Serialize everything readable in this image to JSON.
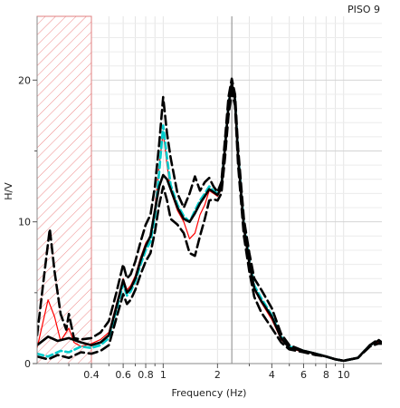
{
  "chart_data": {
    "type": "line",
    "title": "PISO 9",
    "xlabel": "Frequency (Hz)",
    "ylabel": "H/V",
    "x_scale": "log",
    "xlim": [
      0.2,
      16.3
    ],
    "ylim": [
      0,
      24.5
    ],
    "x_ticks": [
      {
        "value": 0.4,
        "label": "0.4"
      },
      {
        "value": 0.6,
        "label": "0.6"
      },
      {
        "value": 0.8,
        "label": "0.8"
      },
      {
        "value": 1,
        "label": "1"
      },
      {
        "value": 2,
        "label": "2"
      },
      {
        "value": 4,
        "label": "4"
      },
      {
        "value": 6,
        "label": "6"
      },
      {
        "value": 8,
        "label": "8"
      },
      {
        "value": 10,
        "label": "10"
      }
    ],
    "y_ticks": [
      {
        "value": 0,
        "label": "0"
      },
      {
        "value": 10,
        "label": "10"
      },
      {
        "value": 20,
        "label": "20"
      }
    ],
    "grid": true,
    "excluded_band": {
      "x_min": 0.2,
      "x_max": 0.4,
      "style": "red-hatched"
    },
    "peak_marker_x": 2.4,
    "series": [
      {
        "color": "#ff0000",
        "style": "solid",
        "points": [
          [
            0.2,
            1.1
          ],
          [
            0.23,
            4.5
          ],
          [
            0.25,
            3.3
          ],
          [
            0.27,
            1.6
          ],
          [
            0.3,
            2.5
          ],
          [
            0.32,
            1.5
          ],
          [
            0.35,
            1.2
          ],
          [
            0.4,
            1.4
          ],
          [
            0.45,
            1.7
          ],
          [
            0.5,
            2.2
          ],
          [
            0.55,
            4.2
          ],
          [
            0.6,
            6
          ],
          [
            0.63,
            5.2
          ],
          [
            0.66,
            5.5
          ],
          [
            0.7,
            6.2
          ],
          [
            0.75,
            7.5
          ],
          [
            0.8,
            8.5
          ],
          [
            0.85,
            9
          ],
          [
            0.9,
            11
          ],
          [
            0.95,
            14
          ],
          [
            1,
            16.3
          ],
          [
            1.05,
            14
          ],
          [
            1.1,
            12.2
          ],
          [
            1.2,
            10.8
          ],
          [
            1.3,
            10
          ],
          [
            1.4,
            8.8
          ],
          [
            1.5,
            9.2
          ],
          [
            1.6,
            10.5
          ],
          [
            1.7,
            11.2
          ],
          [
            1.8,
            12.2
          ],
          [
            1.9,
            12
          ],
          [
            2,
            11.8
          ],
          [
            2.1,
            12.3
          ],
          [
            2.2,
            15
          ],
          [
            2.3,
            18
          ],
          [
            2.4,
            19.5
          ],
          [
            2.5,
            18.5
          ],
          [
            2.6,
            14.5
          ],
          [
            2.8,
            9.5
          ],
          [
            3,
            7
          ],
          [
            3.2,
            5.2
          ],
          [
            3.5,
            4.3
          ],
          [
            4,
            3.1
          ],
          [
            4.5,
            1.7
          ],
          [
            5,
            1.1
          ],
          [
            6,
            0.8
          ],
          [
            7,
            0.7
          ],
          [
            8,
            0.5
          ],
          [
            9,
            0.3
          ],
          [
            10,
            0.2
          ],
          [
            12,
            0.4
          ],
          [
            14,
            1.3
          ],
          [
            15.5,
            1.5
          ],
          [
            16.3,
            1.5
          ]
        ]
      },
      {
        "color": "#00cccc",
        "style": "dashed",
        "points": [
          [
            0.2,
            0.7
          ],
          [
            0.23,
            0.5
          ],
          [
            0.27,
            0.9
          ],
          [
            0.3,
            0.8
          ],
          [
            0.35,
            1.2
          ],
          [
            0.4,
            1.1
          ],
          [
            0.45,
            1.3
          ],
          [
            0.5,
            1.8
          ],
          [
            0.55,
            3.8
          ],
          [
            0.6,
            5.6
          ],
          [
            0.63,
            4.8
          ],
          [
            0.66,
            5.1
          ],
          [
            0.7,
            5.8
          ],
          [
            0.75,
            7
          ],
          [
            0.8,
            8
          ],
          [
            0.85,
            8.6
          ],
          [
            0.9,
            10.4
          ],
          [
            0.95,
            13.5
          ],
          [
            1,
            16.8
          ],
          [
            1.05,
            14.5
          ],
          [
            1.1,
            12.6
          ],
          [
            1.2,
            11.2
          ],
          [
            1.3,
            10.4
          ],
          [
            1.4,
            10
          ],
          [
            1.5,
            10.8
          ],
          [
            1.6,
            11.5
          ],
          [
            1.7,
            12
          ],
          [
            1.8,
            12.5
          ],
          [
            1.9,
            12.2
          ],
          [
            2,
            12
          ],
          [
            2.1,
            12.5
          ],
          [
            2.2,
            15.3
          ],
          [
            2.3,
            18.3
          ],
          [
            2.4,
            19.7
          ],
          [
            2.5,
            18.7
          ],
          [
            2.6,
            14.8
          ],
          [
            2.8,
            9.8
          ],
          [
            3,
            7.3
          ],
          [
            3.2,
            5.5
          ],
          [
            3.5,
            4.6
          ],
          [
            4,
            3.4
          ],
          [
            4.5,
            1.9
          ],
          [
            5,
            1.2
          ],
          [
            6,
            0.9
          ],
          [
            7,
            0.7
          ],
          [
            8,
            0.5
          ],
          [
            9,
            0.3
          ],
          [
            10,
            0.2
          ],
          [
            12,
            0.4
          ],
          [
            14,
            1.3
          ],
          [
            15.5,
            1.6
          ],
          [
            16.3,
            1.5
          ]
        ]
      },
      {
        "color": "#000000",
        "style": "dashed",
        "points": [
          [
            0.2,
            2
          ],
          [
            0.22,
            6.5
          ],
          [
            0.235,
            9.5
          ],
          [
            0.25,
            6.5
          ],
          [
            0.27,
            3.5
          ],
          [
            0.29,
            2.4
          ],
          [
            0.3,
            3.5
          ],
          [
            0.32,
            1.8
          ],
          [
            0.35,
            1.7
          ],
          [
            0.4,
            1.8
          ],
          [
            0.45,
            2.2
          ],
          [
            0.5,
            3
          ],
          [
            0.55,
            5
          ],
          [
            0.6,
            7
          ],
          [
            0.63,
            6
          ],
          [
            0.66,
            6.3
          ],
          [
            0.7,
            7.2
          ],
          [
            0.75,
            8.6
          ],
          [
            0.8,
            9.8
          ],
          [
            0.85,
            10.5
          ],
          [
            0.9,
            12.5
          ],
          [
            0.95,
            15.5
          ],
          [
            1,
            18.8
          ],
          [
            1.05,
            16.2
          ],
          [
            1.1,
            14.5
          ],
          [
            1.2,
            12
          ],
          [
            1.3,
            11
          ],
          [
            1.4,
            12
          ],
          [
            1.5,
            13.2
          ],
          [
            1.6,
            12.2
          ],
          [
            1.7,
            12.8
          ],
          [
            1.8,
            13.1
          ],
          [
            1.9,
            12.5
          ],
          [
            2,
            12.1
          ],
          [
            2.1,
            12.8
          ],
          [
            2.2,
            15.8
          ],
          [
            2.3,
            18.8
          ],
          [
            2.4,
            20.1
          ],
          [
            2.5,
            19
          ],
          [
            2.6,
            15.2
          ],
          [
            2.8,
            10.2
          ],
          [
            3,
            7.8
          ],
          [
            3.2,
            6
          ],
          [
            3.5,
            5.2
          ],
          [
            4,
            3.9
          ],
          [
            4.5,
            2.1
          ],
          [
            5,
            1.3
          ],
          [
            6,
            0.9
          ],
          [
            7,
            0.7
          ],
          [
            8,
            0.5
          ],
          [
            9,
            0.3
          ],
          [
            10,
            0.2
          ],
          [
            12,
            0.4
          ],
          [
            14,
            1.3
          ],
          [
            15.5,
            1.7
          ],
          [
            16.3,
            1.5
          ]
        ]
      },
      {
        "color": "#000000",
        "style": "dashed",
        "points": [
          [
            0.2,
            0.5
          ],
          [
            0.23,
            0.3
          ],
          [
            0.26,
            0.6
          ],
          [
            0.3,
            0.4
          ],
          [
            0.35,
            0.8
          ],
          [
            0.4,
            0.7
          ],
          [
            0.45,
            0.9
          ],
          [
            0.5,
            1.3
          ],
          [
            0.55,
            3.2
          ],
          [
            0.6,
            4.9
          ],
          [
            0.63,
            4.2
          ],
          [
            0.66,
            4.5
          ],
          [
            0.7,
            5.2
          ],
          [
            0.75,
            6.3
          ],
          [
            0.8,
            7.2
          ],
          [
            0.85,
            7.8
          ],
          [
            0.9,
            9.3
          ],
          [
            0.95,
            11.2
          ],
          [
            1,
            12.5
          ],
          [
            1.05,
            11.5
          ],
          [
            1.1,
            10.2
          ],
          [
            1.2,
            9.8
          ],
          [
            1.3,
            9.2
          ],
          [
            1.4,
            7.8
          ],
          [
            1.5,
            7.6
          ],
          [
            1.6,
            9
          ],
          [
            1.7,
            10.2
          ],
          [
            1.8,
            11.5
          ],
          [
            1.9,
            11.6
          ],
          [
            2,
            11.5
          ],
          [
            2.1,
            12
          ],
          [
            2.2,
            14.5
          ],
          [
            2.3,
            17.5
          ],
          [
            2.4,
            19.2
          ],
          [
            2.5,
            18.2
          ],
          [
            2.6,
            14
          ],
          [
            2.8,
            9
          ],
          [
            3,
            6.5
          ],
          [
            3.2,
            4.7
          ],
          [
            3.5,
            3.6
          ],
          [
            4,
            2.5
          ],
          [
            4.5,
            1.5
          ],
          [
            5,
            1
          ],
          [
            6,
            0.8
          ],
          [
            7,
            0.6
          ],
          [
            8,
            0.5
          ],
          [
            9,
            0.3
          ],
          [
            10,
            0.2
          ],
          [
            12,
            0.4
          ],
          [
            14,
            1.2
          ],
          [
            15.5,
            1.4
          ],
          [
            16.3,
            1.4
          ]
        ]
      },
      {
        "color": "#000000",
        "style": "solid",
        "points": [
          [
            0.2,
            1.3
          ],
          [
            0.23,
            1.9
          ],
          [
            0.26,
            1.6
          ],
          [
            0.3,
            1.8
          ],
          [
            0.35,
            1.5
          ],
          [
            0.4,
            1.3
          ],
          [
            0.45,
            1.5
          ],
          [
            0.5,
            2
          ],
          [
            0.55,
            4
          ],
          [
            0.6,
            5.9
          ],
          [
            0.63,
            5
          ],
          [
            0.66,
            5.3
          ],
          [
            0.7,
            6
          ],
          [
            0.75,
            7.3
          ],
          [
            0.8,
            8.3
          ],
          [
            0.85,
            9
          ],
          [
            0.9,
            10.8
          ],
          [
            0.95,
            12.5
          ],
          [
            1,
            13.3
          ],
          [
            1.05,
            13
          ],
          [
            1.1,
            12.3
          ],
          [
            1.2,
            11
          ],
          [
            1.3,
            10.2
          ],
          [
            1.4,
            10
          ],
          [
            1.5,
            10.6
          ],
          [
            1.6,
            11.3
          ],
          [
            1.7,
            11.8
          ],
          [
            1.8,
            12.3
          ],
          [
            1.9,
            12.1
          ],
          [
            2,
            11.9
          ],
          [
            2.1,
            12.4
          ],
          [
            2.2,
            15.2
          ],
          [
            2.3,
            18.2
          ],
          [
            2.4,
            19.8
          ],
          [
            2.5,
            18.6
          ],
          [
            2.6,
            14.6
          ],
          [
            2.8,
            9.6
          ],
          [
            3,
            7.1
          ],
          [
            3.2,
            5.3
          ],
          [
            3.5,
            4.4
          ],
          [
            4,
            3.3
          ],
          [
            4.5,
            1.8
          ],
          [
            5,
            1.1
          ],
          [
            6,
            0.9
          ],
          [
            7,
            0.7
          ],
          [
            8,
            0.5
          ],
          [
            9,
            0.3
          ],
          [
            10,
            0.2
          ],
          [
            12,
            0.4
          ],
          [
            14,
            1.3
          ],
          [
            15.5,
            1.6
          ],
          [
            16.3,
            1.5
          ]
        ]
      }
    ]
  }
}
